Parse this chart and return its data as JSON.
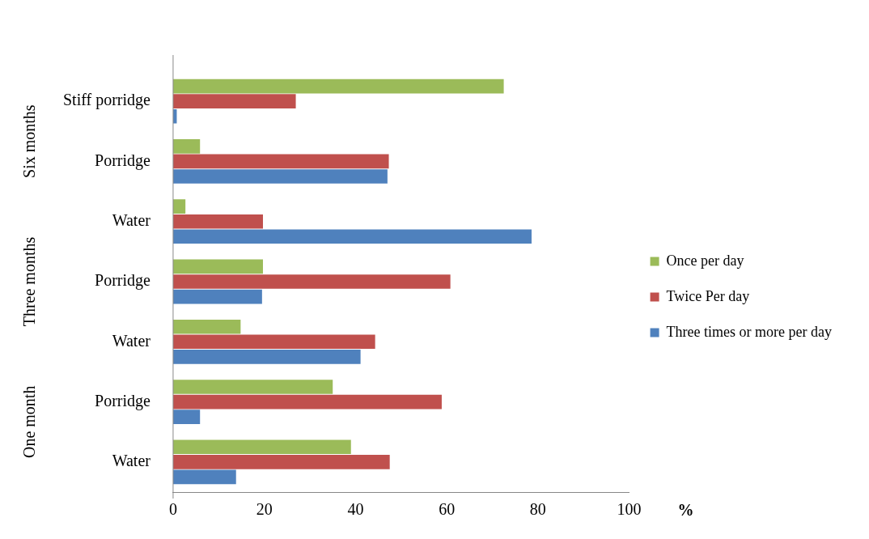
{
  "chart_data": {
    "type": "bar",
    "orientation": "horizontal",
    "xlabel": "%",
    "categories": [
      "Stiff porridge",
      "Porridge",
      "Water",
      "Porridge",
      "Water",
      "Porridge",
      "Water"
    ],
    "series": [
      {
        "name": "Once per day",
        "color": "#9bbb59",
        "values": [
          72.5,
          5.9,
          2.7,
          19.7,
          14.8,
          35,
          39
        ]
      },
      {
        "name": "Twice Per day",
        "color": "#c0504d",
        "values": [
          26.9,
          47.3,
          19.7,
          60.8,
          44.3,
          58.9,
          47.5
        ]
      },
      {
        "name": "Three times or more per day",
        "color": "#4f81bd",
        "values": [
          0.8,
          47,
          78.6,
          19.5,
          41.1,
          5.9,
          13.8
        ]
      }
    ],
    "xlim": [
      0,
      100
    ],
    "xticks": [
      0,
      20,
      40,
      60,
      80,
      100
    ],
    "grid": false,
    "legend": "right",
    "annotations": [
      "Six months",
      "Three months",
      "One month"
    ]
  }
}
